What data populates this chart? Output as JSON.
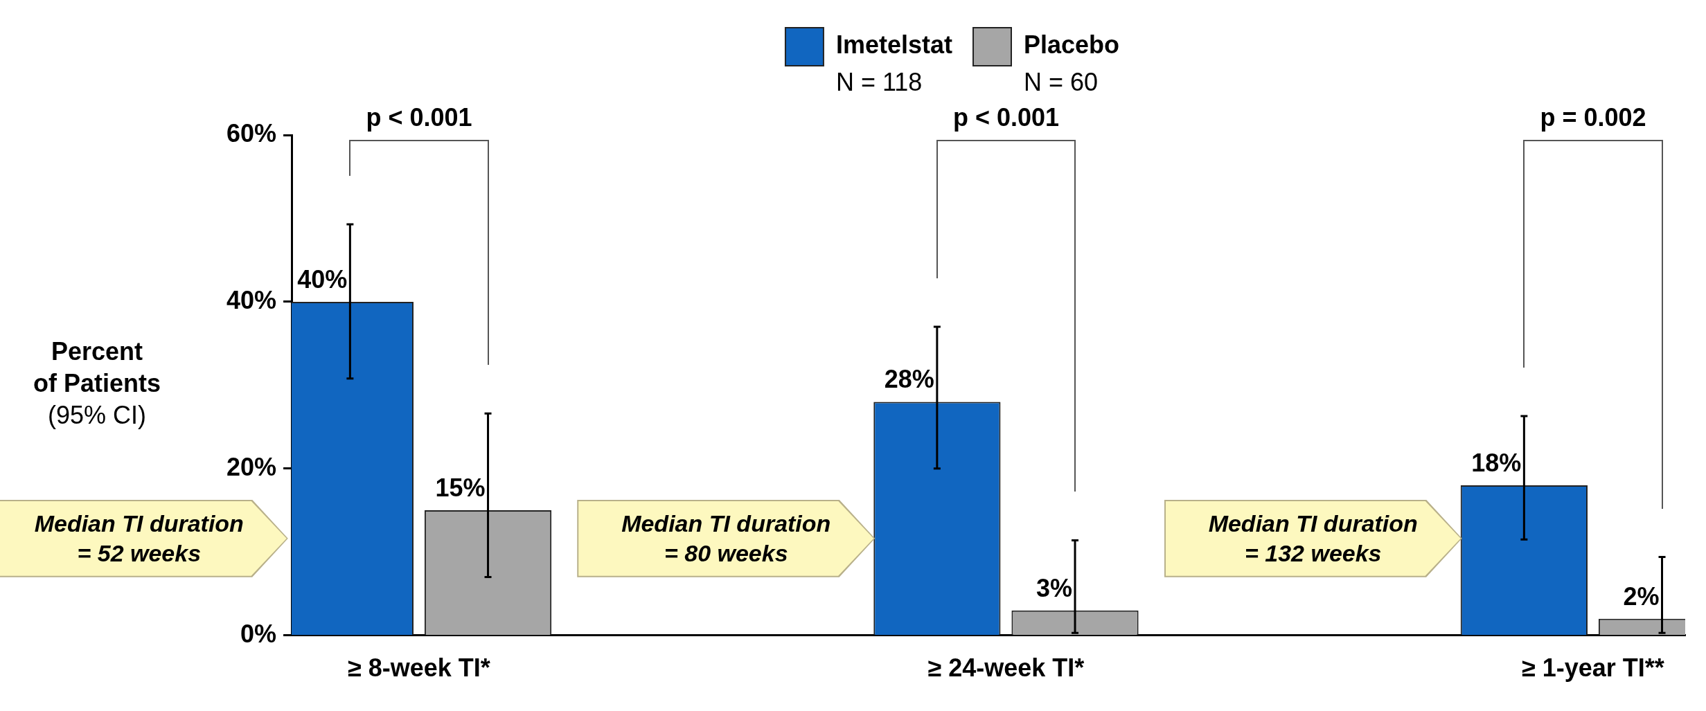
{
  "chart_data": {
    "type": "bar",
    "ylabel": "Percent\nof Patients\n(95% CI)",
    "categories": [
      "≥ 8-week TI*",
      "≥ 24-week TI*",
      "≥ 1-year TI**"
    ],
    "series": [
      {
        "name": "Imetelstat",
        "color": "#1166c0",
        "values": [
          40,
          28,
          18
        ],
        "errors": [
          [
            30.8,
            49.3
          ],
          [
            20,
            37
          ],
          [
            11.5,
            26.3
          ]
        ],
        "value_labels": [
          "40%",
          "28%",
          "18%"
        ]
      },
      {
        "name": "Placebo",
        "color": "#a6a6a6",
        "values": [
          15,
          3,
          2
        ],
        "errors": [
          [
            7,
            26.6
          ],
          [
            0.3,
            11.4
          ],
          [
            0.3,
            9.4
          ]
        ],
        "value_labels": [
          "15%",
          "3%",
          "2%"
        ]
      }
    ],
    "ylim": [
      0,
      60
    ],
    "yticks": [
      {
        "value": 0,
        "label": "0%"
      },
      {
        "value": 20,
        "label": "20%"
      },
      {
        "value": 40,
        "label": "40%"
      },
      {
        "value": 60,
        "label": "60%"
      }
    ],
    "grid": false,
    "legend": "top",
    "annotations": [
      "p < 0.001",
      "p < 0.001",
      "p = 0.002",
      "Median TI duration\n= 52 weeks",
      "Median TI duration\n= 80 weeks",
      "Median TI duration\n= 132 weeks",
      "N = 118",
      "N = 60"
    ]
  }
}
